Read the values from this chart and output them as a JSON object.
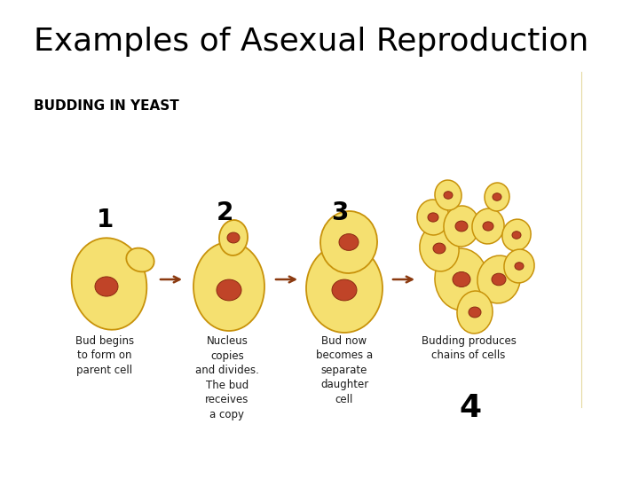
{
  "title": "Examples of Asexual Reproduction",
  "subtitle": "BUDDING IN YEAST",
  "title_fontsize": 26,
  "subtitle_fontsize": 11,
  "background_color": "#ffffff",
  "title_color": "#000000",
  "subtitle_color": "#000000",
  "step_labels": [
    "1",
    "2",
    "3"
  ],
  "step4_label": "4",
  "captions": [
    "Bud begins\nto form on\nparent cell",
    "Nucleus\ncopies\nand divides.\nThe bud\nreceives\na copy",
    "Bud now\nbecomes a\nseparate\ndaughter\ncell",
    "Budding produces\nchains of cells"
  ],
  "cell_color": "#f5e070",
  "cell_color2": "#ede080",
  "cell_edge_color": "#c8920a",
  "nucleus_color": "#c04428",
  "nucleus_edge_color": "#8b2a10",
  "arrow_color": "#8b3a10",
  "step_number_color": "#000000",
  "step_number_fontsize": 20,
  "caption_fontsize": 8.5,
  "caption_color": "#1a1a1a",
  "border_color": "#d4b060"
}
